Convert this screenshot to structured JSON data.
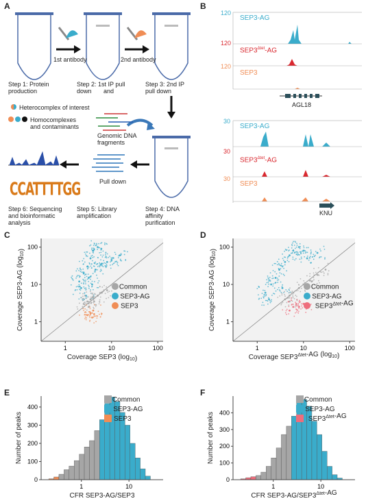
{
  "panels": {
    "A": "A",
    "B": "B",
    "C": "C",
    "D": "D",
    "E": "E",
    "F": "F"
  },
  "panelA": {
    "first_antibody": "1st antibody",
    "second_antibody": "2nd antibody",
    "step1": [
      "Step 1: Protein",
      "production"
    ],
    "step2": [
      "Step 2: 1st IP pull",
      "down",
      "and"
    ],
    "step3": [
      "Step 3: 2nd IP",
      "pull down"
    ],
    "legend_hetero": "Heterocomplex of interest",
    "legend_homo": [
      "Homocomplexes",
      "and contaminants"
    ],
    "genomic": [
      "Genomic DNA",
      "fragments"
    ],
    "pull_down": "Pull down",
    "step4": [
      "Step 4: DNA",
      "affinity",
      "purification"
    ],
    "step5": [
      "Step 5: Library",
      "amplification"
    ],
    "step6": [
      "Step 6: Sequencing",
      "and bioinformatic",
      "analysis"
    ],
    "logo": "CCATTTTGG"
  },
  "panelB": {
    "top": {
      "tracks": [
        {
          "name": "SEP3-AG",
          "scale": "120",
          "color": "#3aaccb"
        },
        {
          "name": "SEP3",
          "sup": "Δtet",
          "suffix": "-AG",
          "scale": "120",
          "color": "#d9282f"
        },
        {
          "name": "SEP3",
          "scale": "120",
          "color": "#f08d55"
        }
      ],
      "gene": "AGL18"
    },
    "bottom": {
      "tracks": [
        {
          "name": "SEP3-AG",
          "scale": "30",
          "color": "#3aaccb"
        },
        {
          "name": "SEP3",
          "sup": "Δtet",
          "suffix": "-AG",
          "scale": "30",
          "color": "#d9282f"
        },
        {
          "name": "SEP3",
          "scale": "30",
          "color": "#f08d55"
        }
      ],
      "gene": "KNU"
    }
  },
  "colors": {
    "common": "#a6a6a6",
    "sep3ag": "#3aaccb",
    "sep3": "#f08d55",
    "sep3dtet": "#ee6d7c"
  },
  "chart_data": [
    {
      "panel": "C",
      "type": "scatter",
      "xlabel": "Coverage SEP3 (log10)",
      "ylabel": "Coverage SEP3-AG (log10)",
      "x_ticks": [
        "1",
        "10",
        "100"
      ],
      "y_ticks": [
        "1",
        "10",
        "100"
      ],
      "xlim": [
        0.3,
        130
      ],
      "ylim": [
        0.3,
        170
      ],
      "log": true,
      "legend": [
        "Common",
        "SEP3-AG",
        "SEP3"
      ],
      "legend_position": "right",
      "series": [
        {
          "name": "SEP3-AG",
          "color": "#3aaccb",
          "points": [
            [
              2.0,
              12
            ],
            [
              2.5,
              20
            ],
            [
              3.0,
              30
            ],
            [
              3.5,
              50
            ],
            [
              4.0,
              80
            ],
            [
              5,
              100
            ],
            [
              6,
              90
            ],
            [
              2.2,
              8
            ],
            [
              3.2,
              15
            ],
            [
              4.5,
              25
            ],
            [
              6,
              35
            ],
            [
              8,
              40
            ],
            [
              10,
              45
            ],
            [
              15,
              60
            ],
            [
              2.8,
              5
            ],
            [
              3.8,
              10
            ]
          ]
        },
        {
          "name": "Common",
          "color": "#a6a6a6",
          "points": [
            [
              2.5,
              3
            ],
            [
              3,
              3.5
            ],
            [
              3.5,
              4
            ],
            [
              4,
              4.5
            ],
            [
              5,
              5
            ],
            [
              6,
              6
            ],
            [
              8,
              7
            ],
            [
              3.2,
              2.5
            ],
            [
              4.2,
              3.5
            ]
          ]
        },
        {
          "name": "SEP3",
          "color": "#f08d55",
          "points": [
            [
              3,
              1.5
            ],
            [
              3.5,
              1.7
            ],
            [
              4,
              2
            ],
            [
              3.8,
              1.3
            ],
            [
              4.2,
              1.6
            ]
          ]
        }
      ]
    },
    {
      "panel": "D",
      "type": "scatter",
      "xlabel": "Coverage SEP3Δtet-AG (log10)",
      "ylabel": "Coverage SEP3-AG (log10)",
      "x_ticks": [
        "1",
        "10",
        "100"
      ],
      "y_ticks": [
        "1",
        "10",
        "100"
      ],
      "xlim": [
        0.3,
        130
      ],
      "ylim": [
        0.3,
        170
      ],
      "log": true,
      "legend": [
        "Common",
        "SEP3-AG",
        "SEP3Δtet-AG"
      ],
      "legend_position": "right",
      "series": [
        {
          "name": "SEP3-AG",
          "color": "#3aaccb",
          "points": [
            [
              1.5,
              6
            ],
            [
              2,
              10
            ],
            [
              2.5,
              15
            ],
            [
              3,
              25
            ],
            [
              4,
              40
            ],
            [
              5,
              60
            ],
            [
              6,
              80
            ],
            [
              8,
              100
            ],
            [
              10,
              80
            ],
            [
              1.8,
              4
            ],
            [
              3.5,
              8
            ],
            [
              12,
              50
            ],
            [
              20,
              70
            ]
          ]
        },
        {
          "name": "Common",
          "color": "#a6a6a6",
          "points": [
            [
              4,
              4
            ],
            [
              5,
              5
            ],
            [
              6,
              6
            ],
            [
              8,
              8
            ],
            [
              10,
              10
            ],
            [
              15,
              12
            ],
            [
              20,
              18
            ],
            [
              30,
              25
            ],
            [
              5,
              3.5
            ]
          ]
        },
        {
          "name": "SEP3Δtet-AG",
          "color": "#ee6d7c",
          "points": [
            [
              5,
              2
            ],
            [
              6,
              2.5
            ],
            [
              7,
              3
            ],
            [
              8,
              2.5
            ],
            [
              10,
              3
            ]
          ]
        }
      ]
    },
    {
      "panel": "E",
      "type": "bar",
      "xlabel": "CFR SEP3-AG/SEP3",
      "ylabel": "Number of peaks",
      "y_ticks": [
        "0",
        "100",
        "200",
        "300",
        "400"
      ],
      "x_ticks": [
        "1",
        "10"
      ],
      "ylim": [
        0,
        460
      ],
      "legend": [
        "Common",
        "SEP3-AG",
        "SEP3"
      ],
      "legend_position": "top-right",
      "series": [
        {
          "name": "SEP3",
          "color": "#f08d55",
          "values": [
            5,
            15,
            22,
            0,
            0,
            0,
            0,
            0,
            0,
            0,
            0,
            0,
            0,
            0,
            0,
            0,
            0,
            0,
            0,
            0
          ]
        },
        {
          "name": "Common",
          "color": "#a6a6a6",
          "values": [
            0,
            0,
            30,
            55,
            75,
            105,
            140,
            180,
            215,
            270,
            0,
            0,
            0,
            0,
            0,
            0,
            0,
            0,
            0,
            0
          ]
        },
        {
          "name": "SEP3-AG",
          "color": "#3aaccb",
          "values": [
            0,
            0,
            0,
            0,
            0,
            0,
            0,
            0,
            0,
            0,
            330,
            420,
            455,
            430,
            370,
            300,
            200,
            120,
            60,
            20
          ]
        }
      ]
    },
    {
      "panel": "F",
      "type": "bar",
      "xlabel": "CFR SEP3-AG/SEP3Δtet-AG",
      "ylabel": "Number of peaks",
      "y_ticks": [
        "0",
        "100",
        "200",
        "300",
        "400"
      ],
      "x_ticks": [
        "1",
        "10"
      ],
      "ylim": [
        0,
        500
      ],
      "legend": [
        "Common",
        "SEP3-AG",
        "SEP3Δtet-AG"
      ],
      "legend_position": "top-right",
      "series": [
        {
          "name": "SEP3Δtet-AG",
          "color": "#ee6d7c",
          "values": [
            5,
            12,
            18,
            20,
            0,
            0,
            0,
            0,
            0,
            0,
            0,
            0,
            0,
            0,
            0,
            0,
            0,
            0,
            0,
            0
          ]
        },
        {
          "name": "Common",
          "color": "#a6a6a6",
          "values": [
            0,
            0,
            0,
            25,
            45,
            80,
            130,
            190,
            270,
            320,
            0,
            0,
            0,
            0,
            0,
            0,
            0,
            0,
            0,
            0
          ]
        },
        {
          "name": "SEP3-AG",
          "color": "#3aaccb",
          "values": [
            0,
            0,
            0,
            0,
            0,
            0,
            0,
            0,
            0,
            0,
            380,
            470,
            480,
            440,
            350,
            270,
            170,
            80,
            30,
            10
          ]
        }
      ]
    }
  ]
}
